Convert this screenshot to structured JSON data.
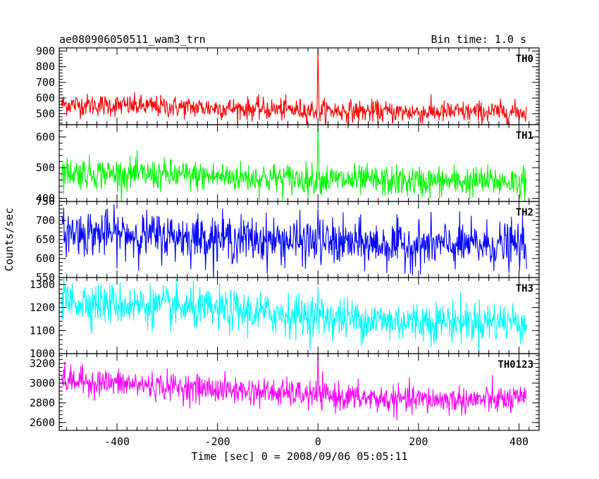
{
  "header": {
    "title": "ae080906050511_wam3_trn",
    "bin_time": "Bin time: 1.0 s"
  },
  "chart_data": {
    "type": "line",
    "xlabel": "Time [sec] 0 = 2008/09/06 05:05:11",
    "ylabel": "Counts/sec",
    "xlim": [
      -515,
      440
    ],
    "x_ticks": [
      -400,
      -200,
      0,
      200,
      400
    ],
    "x_range_data": [
      -510,
      415
    ],
    "burst_time": 0,
    "grid": false,
    "panels": [
      {
        "name": "TH0",
        "color": "#ff0000",
        "ylim": [
          430,
          920
        ],
        "y_ticks": [
          500,
          600,
          700,
          800,
          900
        ],
        "level_start": 560,
        "level_end": 510,
        "noise": 35,
        "peak": 920
      },
      {
        "name": "TH1",
        "color": "#00ff00",
        "ylim": [
          390,
          640
        ],
        "y_ticks": [
          400,
          500,
          600
        ],
        "level_start": 485,
        "level_end": 455,
        "noise": 25,
        "peak": 640
      },
      {
        "name": "TH2",
        "color": "#0000ff",
        "ylim": [
          550,
          750
        ],
        "y_ticks": [
          550,
          600,
          650,
          700,
          750
        ],
        "level_start": 670,
        "level_end": 635,
        "noise": 30,
        "peak": 730
      },
      {
        "name": "TH3",
        "color": "#00ffff",
        "ylim": [
          1000,
          1330
        ],
        "y_ticks": [
          1000,
          1100,
          1200,
          1300
        ],
        "level_start": 1230,
        "level_end": 1140,
        "noise": 45,
        "peak": 1290
      },
      {
        "name": "TH0123",
        "color": "#ff00ff",
        "ylim": [
          2520,
          3300
        ],
        "y_ticks": [
          2600,
          2800,
          3000,
          3200
        ],
        "level_start": 3030,
        "level_end": 2830,
        "noise": 70,
        "peak": 3300
      }
    ]
  }
}
